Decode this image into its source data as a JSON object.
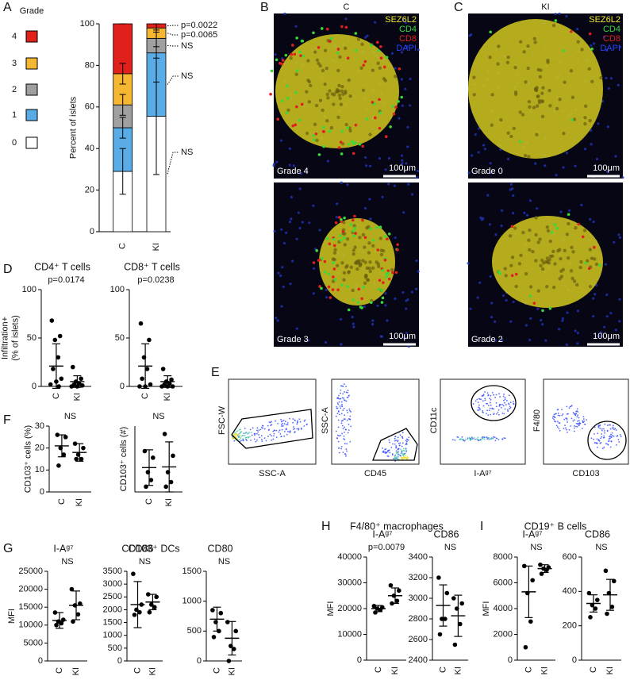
{
  "panel_labels": [
    "A",
    "B",
    "C",
    "D",
    "E",
    "F",
    "G",
    "H",
    "I"
  ],
  "group_titles": [
    "CD103⁺ DCs",
    "F4/80⁺ macrophages",
    "CD19⁺ B cells"
  ],
  "micrographs": {
    "columns": [
      {
        "title": "C",
        "grades": [
          "Grade 4",
          "Grade 3"
        ]
      },
      {
        "title": "KI",
        "grades": [
          "Grade 0",
          "Grade 2"
        ]
      }
    ],
    "channels": [
      {
        "name": "SEZ6L2",
        "color": "#f2e82c"
      },
      {
        "name": "CD4",
        "color": "#3ad83a"
      },
      {
        "name": "CD8",
        "color": "#e02020"
      },
      {
        "name": "DAPI",
        "color": "#2a45ff"
      }
    ],
    "scale_bar": "100μm"
  },
  "flow_plots": [
    {
      "x_label": "SSC-A",
      "y_label": "FSC-W"
    },
    {
      "x_label": "CD45",
      "y_label": "SSC-A"
    },
    {
      "x_label": "I-Aᵍ⁷",
      "y_label": "CD11c"
    },
    {
      "x_label": "CD103",
      "y_label": "F4/80"
    }
  ],
  "chart_data": [
    {
      "type": "stacked-bar",
      "ylabel": "Percent of islets",
      "legend_title": "Grade",
      "categories": [
        "C",
        "KI"
      ],
      "ylim": [
        0,
        100
      ],
      "yticks": [
        0,
        20,
        40,
        60,
        80,
        100
      ],
      "series": [
        {
          "name": "0",
          "color": "#ffffff",
          "values": [
            29,
            55.5
          ],
          "errors": [
            11,
            28
          ],
          "annotation": "NS"
        },
        {
          "name": "1",
          "color": "#5aace6",
          "values": [
            21,
            30.5
          ],
          "errors": [
            5,
            14
          ],
          "annotation": "NS"
        },
        {
          "name": "2",
          "color": "#a0a0a0",
          "values": [
            11,
            7
          ],
          "errors": [
            5,
            4
          ],
          "annotation": "NS"
        },
        {
          "name": "3",
          "color": "#f5b731",
          "values": [
            15,
            5
          ],
          "errors": [
            5,
            2
          ],
          "annotation": "p=0.0065"
        },
        {
          "name": "4",
          "color": "#e0201b",
          "values": [
            24,
            2
          ],
          "errors": [
            0,
            0
          ],
          "annotation": "p=0.0022"
        }
      ]
    },
    {
      "type": "dot",
      "title": "CD4⁺ T cells",
      "annotation": "p=0.0174",
      "ylabel": [
        "Infiltration+",
        "(% of islets)"
      ],
      "categories": [
        "C",
        "KI"
      ],
      "ylim": [
        0,
        100
      ],
      "yticks": [
        0,
        50,
        100
      ],
      "values": [
        [
          68,
          52,
          48,
          30,
          18,
          8,
          5,
          2,
          0
        ],
        [
          20,
          8,
          5,
          3,
          2,
          1,
          0,
          0
        ]
      ],
      "means": [
        21,
        5
      ],
      "errors": [
        23,
        6
      ]
    },
    {
      "type": "dot",
      "title": "CD8⁺ T cells",
      "annotation": "p=0.0238",
      "categories": [
        "C",
        "KI"
      ],
      "ylim": [
        0,
        100
      ],
      "yticks": [
        0,
        50,
        100
      ],
      "values": [
        [
          65,
          48,
          30,
          18,
          8,
          2,
          0,
          0
        ],
        [
          18,
          7,
          5,
          3,
          2,
          0,
          0,
          0
        ]
      ],
      "means": [
        21,
        5
      ],
      "errors": [
        23,
        6
      ]
    },
    {
      "type": "dot",
      "annotation": "NS",
      "ylabel": "CD103⁺ cells (%)",
      "categories": [
        "C",
        "KI"
      ],
      "ylim": [
        0,
        30
      ],
      "yticks": [
        0,
        10,
        20,
        30
      ],
      "values": [
        [
          26,
          25,
          20,
          17,
          12
        ],
        [
          22,
          20,
          17,
          15,
          15
        ]
      ],
      "means": [
        21,
        18
      ],
      "errors": [
        5,
        4
      ]
    },
    {
      "type": "dot",
      "annotation": "NS",
      "ylabel": "CD103⁺ cells (#)",
      "categories": [
        "C",
        "KI"
      ],
      "ylim": [
        0,
        1000
      ],
      "values": [
        [
          620,
          520,
          300,
          180,
          80
        ],
        [
          880,
          550,
          300,
          150,
          80
        ]
      ],
      "means": [
        370,
        380
      ],
      "errors": [
        270,
        380
      ]
    },
    {
      "type": "dot",
      "title": "I-Aᵍ⁷",
      "annotation": "NS",
      "ylabel": "MFI",
      "categories": [
        "C",
        "KI"
      ],
      "ylim": [
        0,
        25000
      ],
      "yticks": [
        0,
        5000,
        10000,
        15000,
        20000,
        25000
      ],
      "values": [
        [
          13500,
          11500,
          11000,
          10500,
          10000
        ],
        [
          20000,
          16000,
          15500,
          13000,
          11000
        ]
      ],
      "means": [
        11300,
        15500
      ],
      "errors": [
        2200,
        4000
      ]
    },
    {
      "type": "dot",
      "title": "CD86",
      "annotation": "NS",
      "categories": [
        "C",
        "KI"
      ],
      "ylim": [
        0,
        3500
      ],
      "yticks": [
        0,
        500,
        1000,
        1500,
        2000,
        2500,
        3000,
        3500
      ],
      "values": [
        [
          3400,
          2200,
          2000,
          1900,
          1800
        ],
        [
          2600,
          2500,
          2200,
          2100,
          1900
        ]
      ],
      "means": [
        2200,
        2300
      ],
      "errors": [
        900,
        300
      ]
    },
    {
      "type": "dot",
      "title": "CD80",
      "annotation": "NS",
      "categories": [
        "C",
        "KI"
      ],
      "ylim": [
        0,
        1500
      ],
      "yticks": [
        0,
        500,
        1000,
        1500
      ],
      "values": [
        [
          850,
          800,
          650,
          500,
          400
        ],
        [
          650,
          500,
          250,
          200,
          0
        ]
      ],
      "means": [
        700,
        380
      ],
      "errors": [
        200,
        280
      ]
    },
    {
      "type": "dot",
      "title": "I-Aᵍ⁷",
      "annotation": "p=0.0079",
      "ylabel": "MFI",
      "categories": [
        "C",
        "KI"
      ],
      "ylim": [
        0,
        40000
      ],
      "yticks": [
        0,
        10000,
        20000,
        30000,
        40000
      ],
      "values": [
        [
          21000,
          20500,
          20000,
          19500,
          18500
        ],
        [
          29000,
          27000,
          25000,
          23000,
          22000
        ]
      ],
      "means": [
        20000,
        25000
      ],
      "errors": [
        1200,
        3000
      ]
    },
    {
      "type": "dot",
      "title": "CD86",
      "annotation": "NS",
      "categories": [
        "C",
        "KI"
      ],
      "ylim": [
        2400,
        3400
      ],
      "yticks": [
        2400,
        2600,
        2800,
        3000,
        3200,
        3400
      ],
      "values": [
        [
          3200,
          3050,
          2800,
          2800,
          2650
        ],
        [
          3000,
          2950,
          2900,
          2750,
          2550
        ]
      ],
      "means": [
        2930,
        2830
      ],
      "errors": [
        200,
        200
      ]
    },
    {
      "type": "dot",
      "title": "I-Aᵍ⁷",
      "annotation": "NS",
      "ylabel": "MFI",
      "categories": [
        "C",
        "KI"
      ],
      "ylim": [
        0,
        8000
      ],
      "yticks": [
        0,
        2000,
        4000,
        6000,
        8000
      ],
      "values": [
        [
          7300,
          6200,
          5200,
          3000,
          1000
        ],
        [
          7400,
          7200,
          7100,
          7000,
          6700
        ]
      ],
      "means": [
        5300,
        7100
      ],
      "errors": [
        2000,
        300
      ]
    },
    {
      "type": "dot",
      "title": "CD86",
      "annotation": "NS",
      "categories": [
        "C",
        "KI"
      ],
      "ylim": [
        0,
        600
      ],
      "yticks": [
        0,
        200,
        400,
        600
      ],
      "values": [
        [
          390,
          350,
          320,
          300,
          250
        ],
        [
          520,
          460,
          390,
          310,
          270
        ]
      ],
      "means": [
        330,
        380
      ],
      "errors": [
        50,
        90
      ]
    }
  ]
}
